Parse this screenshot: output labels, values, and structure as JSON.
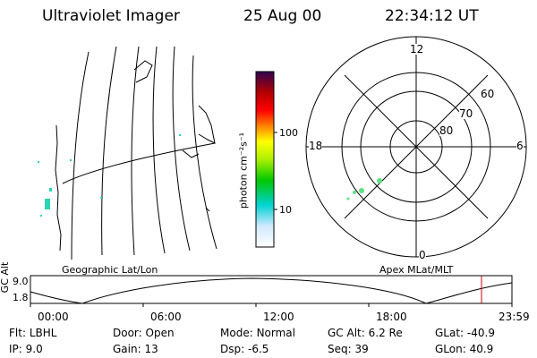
{
  "header": {
    "title": "Ultraviolet Imager",
    "date": "25 Aug 00",
    "time": "22:34:12 UT"
  },
  "geo_map": {
    "label": "Geographic Lat/Lon"
  },
  "polar_plot": {
    "label": "Apex MLat/MLT",
    "mlt_labels": {
      "top": "12",
      "bottom": "0",
      "left": "18",
      "right": "6"
    },
    "lat_labels": [
      "60",
      "70",
      "80"
    ]
  },
  "colorbar": {
    "unit_label": "photon cm⁻²s⁻¹",
    "ticks": [
      "100",
      "10"
    ],
    "colors": [
      "#ffffff",
      "#cfe9ff",
      "#00d2d2",
      "#00c800",
      "#aef000",
      "#ffff00",
      "#ff9000",
      "#ff0000",
      "#b40000",
      "#300050"
    ]
  },
  "altitude_strip": {
    "ylabel": "GC Alt",
    "y_ticks": [
      "9.0",
      "1.8"
    ],
    "x_ticks": [
      "00:00",
      "06:00",
      "12:00",
      "18:00",
      "23:59"
    ],
    "marker_color": "#cc0000"
  },
  "info_rows": [
    [
      {
        "label": "Flt:",
        "value": "LBHL"
      },
      {
        "label": "Door:",
        "value": "Open"
      },
      {
        "label": "Mode:",
        "value": "Normal"
      },
      {
        "label": "GC Alt:",
        "value": "6.2 Re"
      },
      {
        "label": "GLat:",
        "value": "-40.9"
      }
    ],
    [
      {
        "label": "IP:",
        "value": "9.0"
      },
      {
        "label": "Gain:",
        "value": "13"
      },
      {
        "label": "Dsp:",
        "value": "-6.5"
      },
      {
        "label": "Seq:",
        "value": "39"
      },
      {
        "label": "GLon:",
        "value": "40.9"
      }
    ]
  ]
}
